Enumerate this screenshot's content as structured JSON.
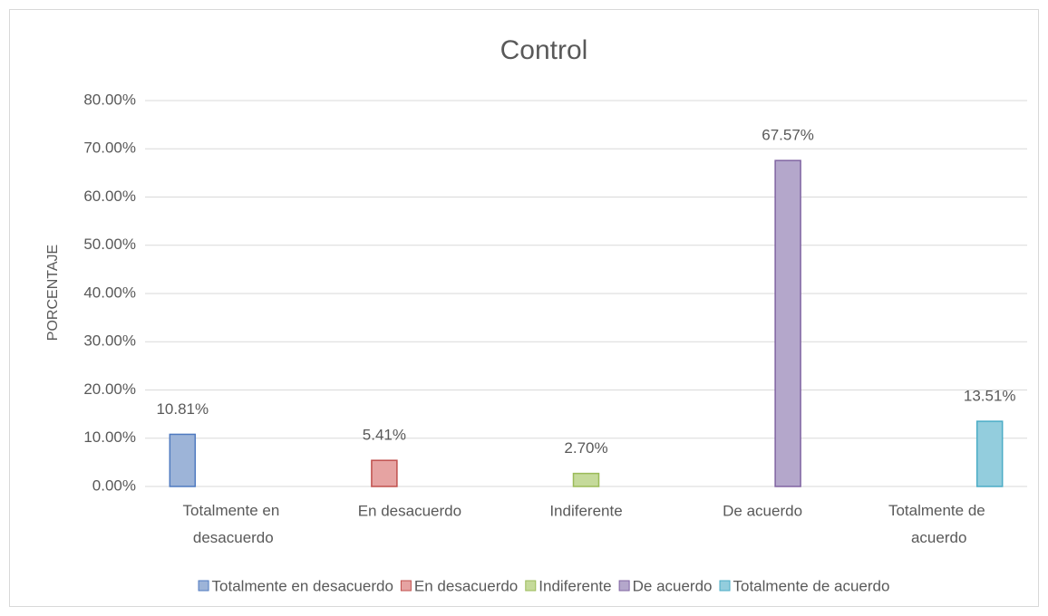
{
  "chart_data": {
    "type": "bar",
    "title": "Control",
    "y_label": "PORCENTAJE",
    "categories": [
      "Totalmente en desacuerdo",
      "En desacuerdo",
      "Indiferente",
      "De acuerdo",
      "Totalmente de acuerdo"
    ],
    "series": [
      {
        "name": "Totalmente en desacuerdo",
        "color": "#9db4d8",
        "edge": "#4f7ac0",
        "values": [
          10.81,
          null,
          null,
          null,
          null
        ],
        "value_labels": [
          "10.81%",
          null,
          null,
          null,
          null
        ]
      },
      {
        "name": "En desacuerdo",
        "color": "#e6a3a2",
        "edge": "#c0504d",
        "values": [
          null,
          5.41,
          null,
          null,
          null
        ],
        "value_labels": [
          null,
          "5.41%",
          null,
          null,
          null
        ]
      },
      {
        "name": "Indiferente",
        "color": "#c5da9a",
        "edge": "#9bbb59",
        "values": [
          null,
          null,
          2.7,
          null,
          null
        ],
        "value_labels": [
          null,
          null,
          "2.70%",
          null,
          null
        ]
      },
      {
        "name": "De acuerdo",
        "color": "#b4a7cb",
        "edge": "#8064a2",
        "values": [
          null,
          null,
          null,
          67.57,
          null
        ],
        "value_labels": [
          null,
          null,
          null,
          "67.57%",
          null
        ]
      },
      {
        "name": "Totalmente de acuerdo",
        "color": "#93cddd",
        "edge": "#4bacc6",
        "values": [
          null,
          null,
          null,
          null,
          13.51
        ],
        "value_labels": [
          null,
          null,
          null,
          null,
          "13.51%"
        ]
      }
    ],
    "ylim": [
      0,
      80
    ],
    "yticks": [
      {
        "value": 0,
        "label": "0.00%"
      },
      {
        "value": 10,
        "label": "10.00%"
      },
      {
        "value": 20,
        "label": "20.00%"
      },
      {
        "value": 30,
        "label": "30.00%"
      },
      {
        "value": 40,
        "label": "40.00%"
      },
      {
        "value": 50,
        "label": "50.00%"
      },
      {
        "value": 60,
        "label": "60.00%"
      },
      {
        "value": 70,
        "label": "70.00%"
      },
      {
        "value": 80,
        "label": "80.00%"
      }
    ],
    "grid": true,
    "legend": "bottom"
  }
}
